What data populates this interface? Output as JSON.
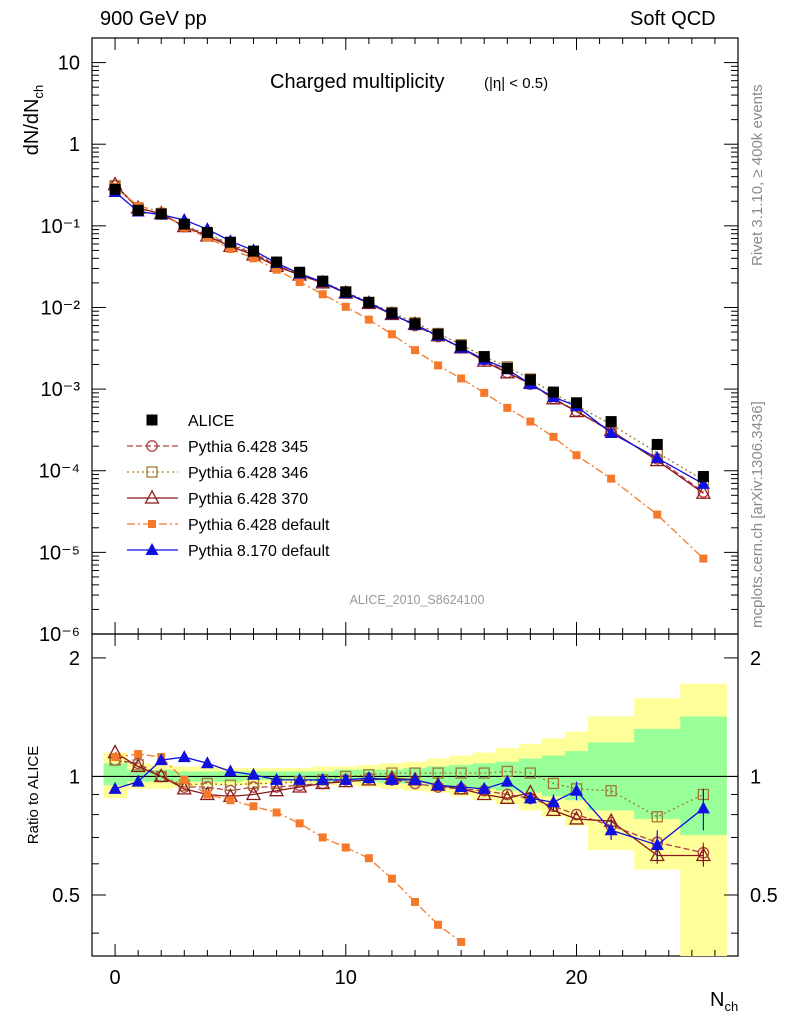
{
  "header": {
    "left": "900 GeV pp",
    "right": "Soft QCD"
  },
  "side_labels": {
    "top": "Rivet 3.1.10, ≥ 400k events",
    "bottom": "mcplots.cern.ch [arXiv:1306.3436]"
  },
  "analysis_id": "ALICE_2010_S8624100",
  "colors": {
    "alice": "#000000",
    "p345": "#b0414b",
    "p346": "#a07a32",
    "p370": "#8b1a1a",
    "p6def": "#f47a2a",
    "p8def": "#1010e0",
    "band_outer": "#ffff99",
    "band_inner": "#99ff99"
  },
  "chart_data": [
    {
      "type": "line",
      "title": "Charged multiplicity",
      "title_suffix": "(|η| < 0.5)",
      "ylabel": "dN/dN_ch",
      "yscale": "log",
      "xlim": [
        -1,
        27
      ],
      "ylim": [
        1e-06,
        20
      ],
      "x_ticks": [
        "0",
        "10",
        "20"
      ],
      "y_ticks": [
        "10",
        "1",
        "10⁻¹",
        "10⁻²",
        "10⁻³",
        "10⁻⁴",
        "10⁻⁵",
        "10⁻⁶"
      ],
      "x": [
        0,
        1,
        2,
        3,
        4,
        5,
        6,
        7,
        8,
        9,
        10,
        11,
        12,
        13,
        14,
        15,
        16,
        17,
        18,
        19,
        20,
        21.5,
        23.5,
        25.5
      ],
      "series": [
        {
          "name": "ALICE",
          "key": "alice",
          "marker": "square",
          "line": "none",
          "values": [
            0.28,
            0.155,
            0.14,
            0.105,
            0.083,
            0.063,
            0.049,
            0.036,
            0.027,
            0.021,
            0.0155,
            0.0115,
            0.0085,
            0.0063,
            0.0047,
            0.0034,
            0.0025,
            0.0018,
            0.0013,
            0.00092,
            0.00068,
            0.0004,
            0.00021,
            8.5e-05
          ]
        },
        {
          "name": "Pythia 6.428 345",
          "key": "p345",
          "marker": "circle-open",
          "line": "dashed",
          "values": [
            0.31,
            0.165,
            0.14,
            0.098,
            0.078,
            0.058,
            0.046,
            0.033,
            0.025,
            0.02,
            0.0153,
            0.0114,
            0.0083,
            0.006,
            0.0044,
            0.0032,
            0.0023,
            0.0016,
            0.00115,
            0.00077,
            0.00054,
            0.0003,
            0.00014,
            5.5e-05
          ]
        },
        {
          "name": "Pythia 6.428 346",
          "key": "p346",
          "marker": "square-open",
          "line": "dotted",
          "values": [
            0.31,
            0.165,
            0.14,
            0.1,
            0.08,
            0.06,
            0.047,
            0.034,
            0.026,
            0.0205,
            0.0155,
            0.0116,
            0.0087,
            0.0065,
            0.0048,
            0.0035,
            0.0025,
            0.00187,
            0.00133,
            0.00088,
            0.00063,
            0.00037,
            0.000166,
            7.7e-05
          ]
        },
        {
          "name": "Pythia 6.428 370",
          "key": "p370",
          "marker": "triangle-open",
          "line": "solid",
          "values": [
            0.32,
            0.165,
            0.141,
            0.098,
            0.075,
            0.056,
            0.044,
            0.032,
            0.025,
            0.02,
            0.015,
            0.0112,
            0.0082,
            0.0062,
            0.0045,
            0.0032,
            0.0022,
            0.00158,
            0.00118,
            0.00076,
            0.00053,
            0.00031,
            0.000133,
            5.3e-05
          ]
        },
        {
          "name": "Pythia 6.428 default",
          "key": "p6def",
          "marker": "square-small",
          "line": "dashdot",
          "values": [
            0.3,
            0.175,
            0.15,
            0.095,
            0.072,
            0.052,
            0.04,
            0.029,
            0.0205,
            0.0145,
            0.0102,
            0.0071,
            0.0047,
            0.003,
            0.00195,
            0.00135,
            0.0009,
            0.00059,
            0.0004,
            0.00026,
            0.000155,
            8e-05,
            2.9e-05,
            8.4e-06
          ]
        },
        {
          "name": "Pythia 8.170 default",
          "key": "p8def",
          "marker": "triangle",
          "line": "solid",
          "values": [
            0.26,
            0.15,
            0.137,
            0.118,
            0.091,
            0.065,
            0.05,
            0.035,
            0.026,
            0.0205,
            0.015,
            0.0115,
            0.0083,
            0.0061,
            0.0045,
            0.0032,
            0.0023,
            0.00175,
            0.00115,
            0.0008,
            0.00062,
            0.00029,
            0.000143,
            6.9e-05
          ]
        }
      ]
    },
    {
      "type": "line",
      "ylabel": "Ratio to ALICE",
      "xlabel": "N_ch",
      "xlim": [
        -1,
        27
      ],
      "ylim": [
        0.35,
        2.3
      ],
      "x_ticks": [
        "0",
        "10",
        "20"
      ],
      "y_ticks": [
        "0.5",
        "1",
        "2"
      ],
      "band_edges": [
        -0.5,
        0.5,
        1.5,
        2.5,
        3.5,
        4.5,
        5.5,
        6.5,
        7.5,
        8.5,
        9.5,
        10.5,
        11.5,
        12.5,
        13.5,
        14.5,
        15.5,
        16.5,
        17.5,
        18.5,
        19.5,
        20.5,
        22.5,
        24.5,
        26.5
      ],
      "band_outer": [
        [
          0.88,
          1.15
        ],
        [
          0.93,
          1.08
        ],
        [
          0.93,
          1.07
        ],
        [
          0.94,
          1.06
        ],
        [
          0.95,
          1.06
        ],
        [
          0.95,
          1.05
        ],
        [
          0.95,
          1.05
        ],
        [
          0.96,
          1.05
        ],
        [
          0.96,
          1.05
        ],
        [
          0.95,
          1.06
        ],
        [
          0.95,
          1.06
        ],
        [
          0.94,
          1.07
        ],
        [
          0.93,
          1.08
        ],
        [
          0.92,
          1.09
        ],
        [
          0.91,
          1.11
        ],
        [
          0.89,
          1.13
        ],
        [
          0.87,
          1.15
        ],
        [
          0.85,
          1.18
        ],
        [
          0.82,
          1.21
        ],
        [
          0.79,
          1.25
        ],
        [
          0.75,
          1.3
        ],
        [
          0.65,
          1.42
        ],
        [
          0.58,
          1.58
        ],
        [
          0.35,
          1.72
        ]
      ],
      "band_inner": [
        [
          0.95,
          1.08
        ],
        [
          0.97,
          1.04
        ],
        [
          0.97,
          1.04
        ],
        [
          0.97,
          1.03
        ],
        [
          0.97,
          1.03
        ],
        [
          0.97,
          1.03
        ],
        [
          0.98,
          1.03
        ],
        [
          0.98,
          1.03
        ],
        [
          0.98,
          1.03
        ],
        [
          0.97,
          1.03
        ],
        [
          0.97,
          1.04
        ],
        [
          0.97,
          1.04
        ],
        [
          0.96,
          1.04
        ],
        [
          0.96,
          1.05
        ],
        [
          0.95,
          1.06
        ],
        [
          0.94,
          1.07
        ],
        [
          0.93,
          1.08
        ],
        [
          0.92,
          1.09
        ],
        [
          0.91,
          1.11
        ],
        [
          0.89,
          1.13
        ],
        [
          0.87,
          1.16
        ],
        [
          0.82,
          1.22
        ],
        [
          0.78,
          1.32
        ],
        [
          0.71,
          1.42
        ]
      ],
      "x": [
        0,
        1,
        2,
        3,
        4,
        5,
        6,
        7,
        8,
        9,
        10,
        11,
        12,
        13,
        14,
        15,
        16,
        17,
        18,
        19,
        20,
        21.5,
        23.5,
        25.5
      ],
      "series": [
        {
          "name": "Pythia 6.428 345",
          "key": "p345",
          "values": [
            1.1,
            1.08,
            1.0,
            0.94,
            0.94,
            0.92,
            0.94,
            0.94,
            0.95,
            0.96,
            0.98,
            0.99,
            0.98,
            0.96,
            0.94,
            0.93,
            0.92,
            0.9,
            0.88,
            0.84,
            0.8,
            0.75,
            0.68,
            0.64
          ],
          "errors": [
            0,
            0,
            0,
            0,
            0,
            0,
            0,
            0,
            0,
            0,
            0,
            0,
            0,
            0,
            0,
            0,
            0,
            0,
            0,
            0,
            0,
            0.02,
            0.03,
            0.04
          ]
        },
        {
          "name": "Pythia 6.428 346",
          "key": "p346",
          "values": [
            1.1,
            1.07,
            1.0,
            0.95,
            0.96,
            0.95,
            0.96,
            0.96,
            0.97,
            0.98,
            1.0,
            1.01,
            1.02,
            1.02,
            1.02,
            1.02,
            1.02,
            1.03,
            1.02,
            0.96,
            0.93,
            0.92,
            0.79,
            0.9
          ],
          "errors": [
            0,
            0,
            0,
            0,
            0,
            0,
            0,
            0,
            0,
            0,
            0,
            0,
            0,
            0,
            0,
            0,
            0,
            0,
            0,
            0,
            0,
            0.02,
            0.02,
            0.03
          ]
        },
        {
          "name": "Pythia 6.428 370",
          "key": "p370",
          "values": [
            1.15,
            1.06,
            1.0,
            0.93,
            0.9,
            0.89,
            0.9,
            0.92,
            0.94,
            0.96,
            0.97,
            0.98,
            0.99,
            0.98,
            0.95,
            0.93,
            0.9,
            0.88,
            0.91,
            0.82,
            0.78,
            0.77,
            0.63,
            0.63
          ],
          "errors": [
            0,
            0,
            0,
            0,
            0,
            0,
            0,
            0,
            0,
            0,
            0,
            0,
            0,
            0,
            0,
            0,
            0,
            0,
            0,
            0,
            0,
            0.02,
            0.03,
            0.04
          ]
        },
        {
          "name": "Pythia 6.428 default",
          "key": "p6def",
          "values": [
            1.12,
            1.14,
            1.12,
            0.98,
            0.9,
            0.87,
            0.84,
            0.81,
            0.76,
            0.7,
            0.66,
            0.62,
            0.55,
            0.48,
            0.42,
            0.38
          ],
          "x": [
            0,
            1,
            2,
            3,
            4,
            5,
            6,
            7,
            8,
            9,
            10,
            11,
            12,
            13,
            14,
            15
          ]
        },
        {
          "name": "Pythia 8.170 default",
          "key": "p8def",
          "values": [
            0.93,
            0.97,
            1.1,
            1.12,
            1.08,
            1.03,
            1.01,
            0.98,
            0.98,
            0.98,
            0.98,
            0.99,
            0.98,
            0.98,
            0.95,
            0.94,
            0.93,
            0.97,
            0.88,
            0.86,
            0.92,
            0.73,
            0.67,
            0.83
          ],
          "errors": [
            0,
            0,
            0,
            0,
            0,
            0,
            0,
            0,
            0,
            0,
            0,
            0,
            0,
            0,
            0,
            0,
            0.02,
            0.03,
            0.03,
            0.04,
            0.05,
            0.04,
            0.06,
            0.1
          ]
        }
      ]
    }
  ]
}
